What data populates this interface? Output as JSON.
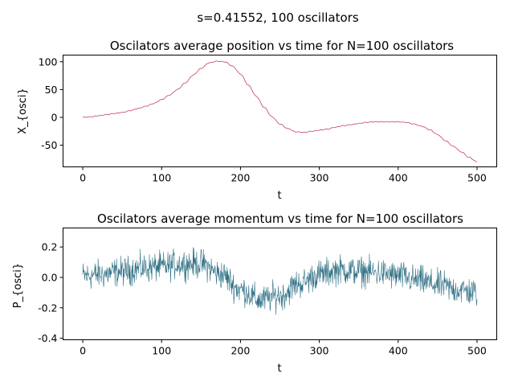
{
  "suptitle": "s=0.41552, 100 oscillators",
  "chart_data": [
    {
      "type": "line",
      "title": "Oscilators average position vs time for N=100 oscillators",
      "xlabel": "t",
      "ylabel": "X_{osci}",
      "xlim": [
        -25,
        525
      ],
      "ylim": [
        -89,
        112
      ],
      "xticks": [
        0,
        100,
        200,
        300,
        400,
        500
      ],
      "yticks": [
        -50,
        0,
        50,
        100
      ],
      "line_color": "#c4445c",
      "series": [
        {
          "x": [
            0,
            10,
            20,
            30,
            40,
            50,
            60,
            70,
            80,
            90,
            100,
            110,
            120,
            130,
            140,
            150,
            160,
            170,
            180,
            190,
            200,
            210,
            220,
            230,
            240,
            250,
            260,
            270,
            280,
            290,
            300,
            310,
            320,
            330,
            340,
            350,
            360,
            370,
            380,
            390,
            400,
            410,
            420,
            430,
            440,
            450,
            460,
            470,
            480,
            490,
            500
          ],
          "y": [
            0,
            1,
            3,
            5,
            7,
            9,
            12,
            16,
            20,
            25,
            32,
            40,
            50,
            62,
            76,
            88,
            98,
            101,
            100,
            92,
            78,
            58,
            38,
            18,
            1,
            -12,
            -20,
            -26,
            -27,
            -25,
            -23,
            -21,
            -18,
            -15,
            -13,
            -11,
            -9,
            -8,
            -8,
            -8,
            -8,
            -9,
            -12,
            -16,
            -22,
            -31,
            -42,
            -52,
            -62,
            -72,
            -80
          ]
        }
      ]
    },
    {
      "type": "line",
      "title": "Oscilators average momentum vs time for N=100 oscillators",
      "xlabel": "t",
      "ylabel": "P_{osci}",
      "xlim": [
        -25,
        525
      ],
      "ylim": [
        -0.41,
        0.325
      ],
      "xticks": [
        0,
        100,
        200,
        300,
        400,
        500
      ],
      "yticks": [
        -0.4,
        -0.2,
        0.0,
        0.2
      ],
      "line_color": "#2e6f84",
      "noise_amplitude": 0.085,
      "series": [
        {
          "x": [
            0,
            25,
            50,
            75,
            100,
            125,
            150,
            175,
            200,
            225,
            250,
            275,
            300,
            325,
            350,
            375,
            400,
            425,
            450,
            475,
            500
          ],
          "y": [
            0.01,
            0.02,
            0.04,
            0.06,
            0.07,
            0.09,
            0.09,
            0.02,
            -0.08,
            -0.15,
            -0.12,
            -0.04,
            0.02,
            0.05,
            0.04,
            0.03,
            0.01,
            -0.02,
            -0.05,
            -0.08,
            -0.1
          ]
        }
      ]
    }
  ]
}
